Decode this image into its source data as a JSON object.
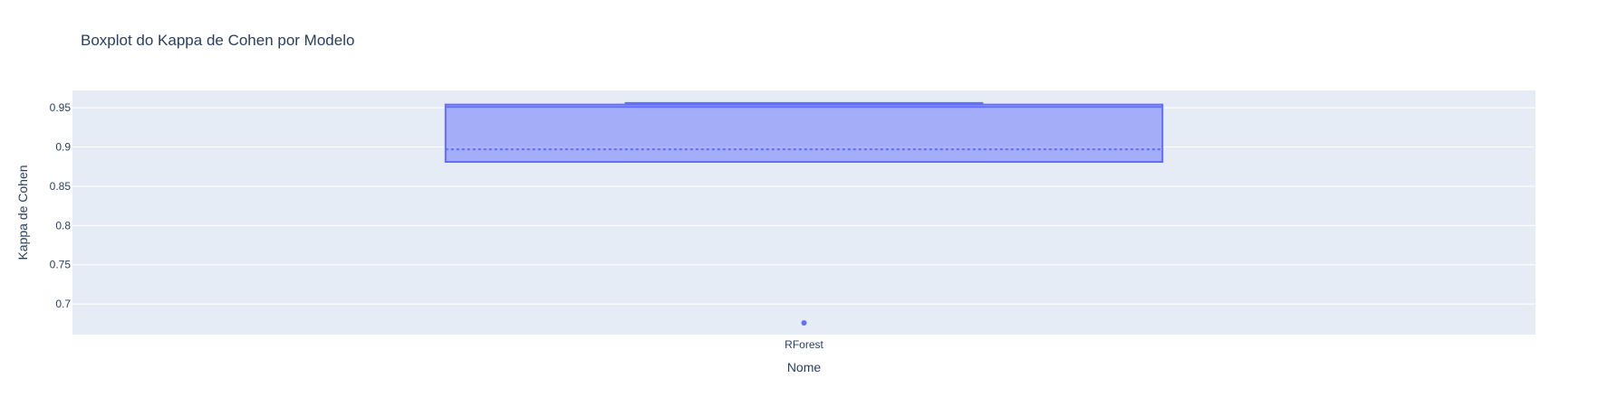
{
  "chart_data": {
    "type": "box",
    "title": "Boxplot do Kappa de Cohen por Modelo",
    "xlabel": "Nome",
    "ylabel": "Kappa de Cohen",
    "categories": [
      "RForest"
    ],
    "ylim": [
      0.661,
      0.972
    ],
    "yticks": [
      {
        "value": 0.7,
        "label": "0.7"
      },
      {
        "value": 0.75,
        "label": "0.75"
      },
      {
        "value": 0.8,
        "label": "0.8"
      },
      {
        "value": 0.85,
        "label": "0.85"
      },
      {
        "value": 0.9,
        "label": "0.9"
      },
      {
        "value": 0.95,
        "label": "0.95"
      }
    ],
    "series": [
      {
        "category": "RForest",
        "lowerfence": 0.881,
        "q1": 0.881,
        "median": 0.951,
        "mean": 0.897,
        "q3": 0.954,
        "upperfence": 0.956,
        "outliers": [
          0.676
        ]
      }
    ],
    "grid": true,
    "colors": {
      "box_line": "#636efa",
      "box_fill": "rgba(99,110,250,0.5)",
      "plot_bg": "#e5ecf6",
      "grid": "#ffffff",
      "text": "#2a3f5f"
    }
  }
}
